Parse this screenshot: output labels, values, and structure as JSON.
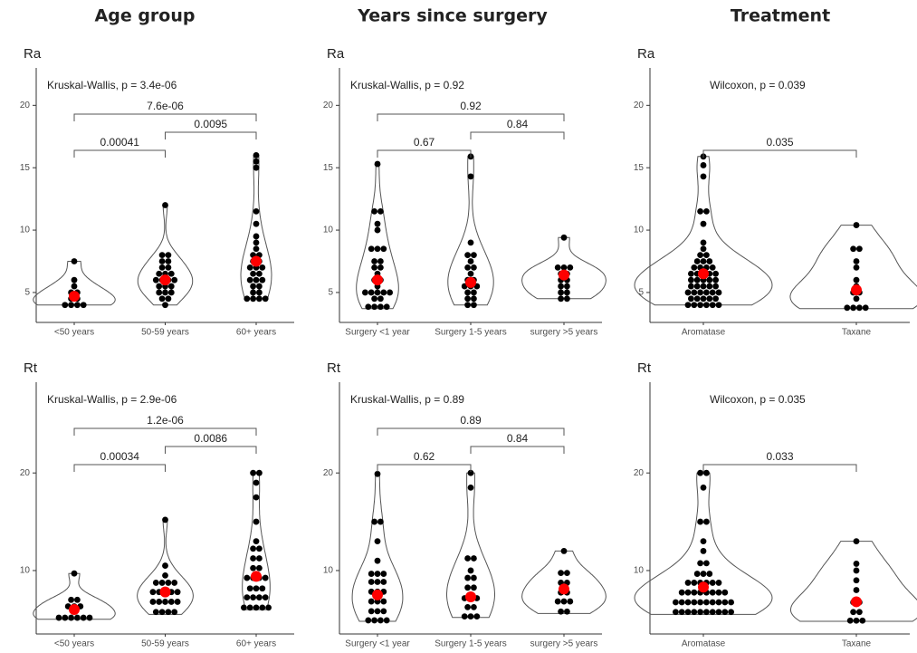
{
  "column_titles": [
    "Age group",
    "Years since surgery",
    "Treatment"
  ],
  "chart_data": [
    {
      "type": "violin",
      "title": "Ra",
      "test_label": "Kruskal-Wallis, p = 3.4e-06",
      "categories": [
        "<50 years",
        "50-59 years",
        "60+ years"
      ],
      "values": [
        [
          4,
          4,
          4,
          4,
          4.5,
          4.5,
          5,
          5,
          5.5,
          6,
          7.5
        ],
        [
          4,
          4.5,
          4.5,
          5,
          5,
          5,
          5.5,
          5.5,
          5.5,
          6,
          6,
          6,
          6,
          6.5,
          6.5,
          6.5,
          7,
          7,
          7.5,
          7.5,
          8,
          8,
          12
        ],
        [
          4.5,
          4.5,
          4.5,
          4.5,
          5,
          5,
          5.5,
          5.5,
          6,
          6,
          6,
          6.5,
          6.5,
          7,
          7,
          7,
          7.5,
          7.5,
          8,
          8,
          8.5,
          9,
          9.5,
          10.5,
          11.5,
          15,
          15.5,
          16
        ]
      ],
      "means": [
        4.7,
        6.0,
        7.5
      ],
      "comparisons": [
        {
          "pair": [
            0,
            1
          ],
          "label": "0.00041"
        },
        {
          "pair": [
            1,
            2
          ],
          "label": "0.0095"
        },
        {
          "pair": [
            0,
            2
          ],
          "label": "7.6e-06"
        }
      ],
      "ylim": [
        2.6,
        23
      ],
      "yticks": [
        5,
        10,
        15,
        20
      ]
    },
    {
      "type": "violin",
      "title": "Ra",
      "test_label": "Kruskal-Wallis, p = 0.92",
      "categories": [
        "Surgery <1 year",
        "Surgery 1-5 years",
        "surgery >5 years"
      ],
      "values": [
        [
          3.7,
          3.7,
          4,
          4,
          4.5,
          4.5,
          5,
          5,
          5,
          5,
          5,
          5.5,
          6,
          6,
          6.5,
          7,
          7,
          7.5,
          7.5,
          8.5,
          8.5,
          8.5,
          10,
          10.5,
          11.5,
          11.5,
          15.3
        ],
        [
          4,
          4,
          4.5,
          4.5,
          5,
          5,
          5.5,
          5.5,
          5.5,
          6,
          6,
          6.5,
          7,
          7,
          7.5,
          8,
          8,
          9,
          14.3,
          15.9
        ],
        [
          4.5,
          4.5,
          5,
          5,
          5.5,
          5.5,
          6,
          6,
          6.5,
          6.5,
          7,
          7,
          7,
          9.4
        ]
      ],
      "means": [
        6.0,
        5.8,
        6.4
      ],
      "comparisons": [
        {
          "pair": [
            0,
            1
          ],
          "label": "0.67"
        },
        {
          "pair": [
            1,
            2
          ],
          "label": "0.84"
        },
        {
          "pair": [
            0,
            2
          ],
          "label": "0.92"
        }
      ],
      "ylim": [
        2.6,
        23
      ],
      "yticks": [
        5,
        10,
        15,
        20
      ]
    },
    {
      "type": "violin",
      "title": "Ra",
      "test_label": "Wilcoxon, p = 0.039",
      "categories": [
        "Aromatase",
        "Taxane"
      ],
      "values": [
        [
          4,
          4,
          4,
          4,
          4,
          4,
          4.5,
          4.5,
          4.5,
          4.5,
          4.5,
          5,
          5,
          5,
          5,
          5,
          5,
          5.5,
          5.5,
          5.5,
          5.5,
          5.5,
          6,
          6,
          6,
          6,
          6,
          6.5,
          6.5,
          6.5,
          6.5,
          6.5,
          7,
          7,
          7,
          7,
          7.5,
          7.5,
          7.5,
          8,
          8,
          8.5,
          9,
          10.5,
          11.5,
          11.5,
          14.3,
          15.2,
          15.9
        ],
        [
          3.7,
          3.7,
          3.7,
          4,
          4.5,
          5,
          5,
          5.5,
          6,
          7,
          7.5,
          8.5,
          8.5,
          10.4
        ]
      ],
      "means": [
        6.5,
        5.2
      ],
      "comparisons": [
        {
          "pair": [
            0,
            1
          ],
          "label": "0.035"
        }
      ],
      "ylim": [
        2.6,
        23
      ],
      "yticks": [
        5,
        10,
        15,
        20
      ]
    },
    {
      "type": "violin",
      "title": "Rt",
      "test_label": "Kruskal-Wallis, p = 2.9e-06",
      "categories": [
        "<50 years",
        "50-59 years",
        "60+ years"
      ],
      "values": [
        [
          5,
          5,
          5,
          5,
          5.5,
          5.5,
          6,
          6.5,
          6.5,
          7,
          7,
          9.7
        ],
        [
          5.5,
          5.5,
          6,
          6,
          6.5,
          6.5,
          7,
          7,
          7,
          7.5,
          7.5,
          8,
          8,
          8,
          8.5,
          8.5,
          9,
          9,
          9.5,
          10.5,
          15.2
        ],
        [
          6,
          6,
          6,
          6.5,
          6.5,
          7,
          7,
          7.5,
          7.5,
          8,
          8,
          8.5,
          9,
          9,
          9.5,
          9.5,
          10,
          10.5,
          11,
          11.5,
          12,
          12.5,
          13,
          15,
          17.5,
          19,
          20,
          20
        ]
      ],
      "means": [
        6.0,
        7.8,
        9.4
      ],
      "comparisons": [
        {
          "pair": [
            0,
            1
          ],
          "label": "0.00034"
        },
        {
          "pair": [
            1,
            2
          ],
          "label": "0.0086"
        },
        {
          "pair": [
            0,
            2
          ],
          "label": "1.2e-06"
        }
      ],
      "ylim": [
        3.5,
        29.3
      ],
      "yticks": [
        10,
        20
      ]
    },
    {
      "type": "violin",
      "title": "Rt",
      "test_label": "Kruskal-Wallis, p = 0.89",
      "categories": [
        "Surgery <1 year",
        "Surgery 1-5 years",
        "surgery >5 years"
      ],
      "values": [
        [
          4.8,
          4.8,
          5,
          5,
          5.5,
          6,
          6,
          6.5,
          7,
          7,
          7.5,
          8,
          8,
          8.5,
          9,
          9,
          9.5,
          9.5,
          10,
          11,
          13,
          15,
          15,
          19.9
        ],
        [
          5.2,
          5.2,
          5.5,
          6,
          6.5,
          7,
          7,
          7.5,
          8,
          8.5,
          9,
          9.5,
          10,
          11,
          11.5,
          18.5,
          20
        ],
        [
          5.6,
          6,
          6.5,
          7,
          7,
          7.5,
          8,
          8.5,
          9,
          9.5,
          10,
          12
        ]
      ],
      "means": [
        7.5,
        7.3,
        8.1
      ],
      "comparisons": [
        {
          "pair": [
            0,
            1
          ],
          "label": "0.62"
        },
        {
          "pair": [
            1,
            2
          ],
          "label": "0.84"
        },
        {
          "pair": [
            0,
            2
          ],
          "label": "0.89"
        }
      ],
      "ylim": [
        3.5,
        29.3
      ],
      "yticks": [
        10,
        20
      ]
    },
    {
      "type": "violin",
      "title": "Rt",
      "test_label": "Wilcoxon, p = 0.035",
      "categories": [
        "Aromatase",
        "Taxane"
      ],
      "values": [
        [
          5.5,
          5.5,
          5.5,
          5.5,
          5.5,
          6,
          6,
          6,
          6,
          6,
          6.5,
          6.5,
          6.5,
          6.5,
          6.5,
          7,
          7,
          7,
          7,
          7,
          7.5,
          7.5,
          7.5,
          7.5,
          8,
          8,
          8,
          8,
          8.5,
          8.5,
          8.5,
          9,
          9,
          9,
          9.5,
          9.5,
          10,
          10.5,
          11,
          12,
          13,
          15,
          15,
          18.5,
          20,
          20
        ],
        [
          4.8,
          4.8,
          5,
          5.5,
          6,
          6.5,
          7,
          8,
          9,
          10,
          10.7,
          13
        ]
      ],
      "means": [
        8.3,
        6.8
      ],
      "comparisons": [
        {
          "pair": [
            0,
            1
          ],
          "label": "0.033"
        }
      ],
      "ylim": [
        3.5,
        29.3
      ],
      "yticks": [
        10,
        20
      ]
    }
  ]
}
